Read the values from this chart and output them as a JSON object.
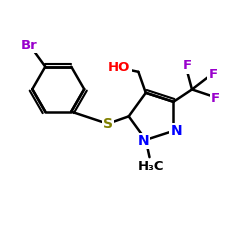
{
  "bg_color": "#ffffff",
  "bond_color": "#000000",
  "bond_width": 1.8,
  "atom_colors": {
    "Br": "#9900cc",
    "S": "#808000",
    "N": "#0000ff",
    "O": "#ff0000",
    "F": "#9900cc",
    "C": "#000000"
  }
}
